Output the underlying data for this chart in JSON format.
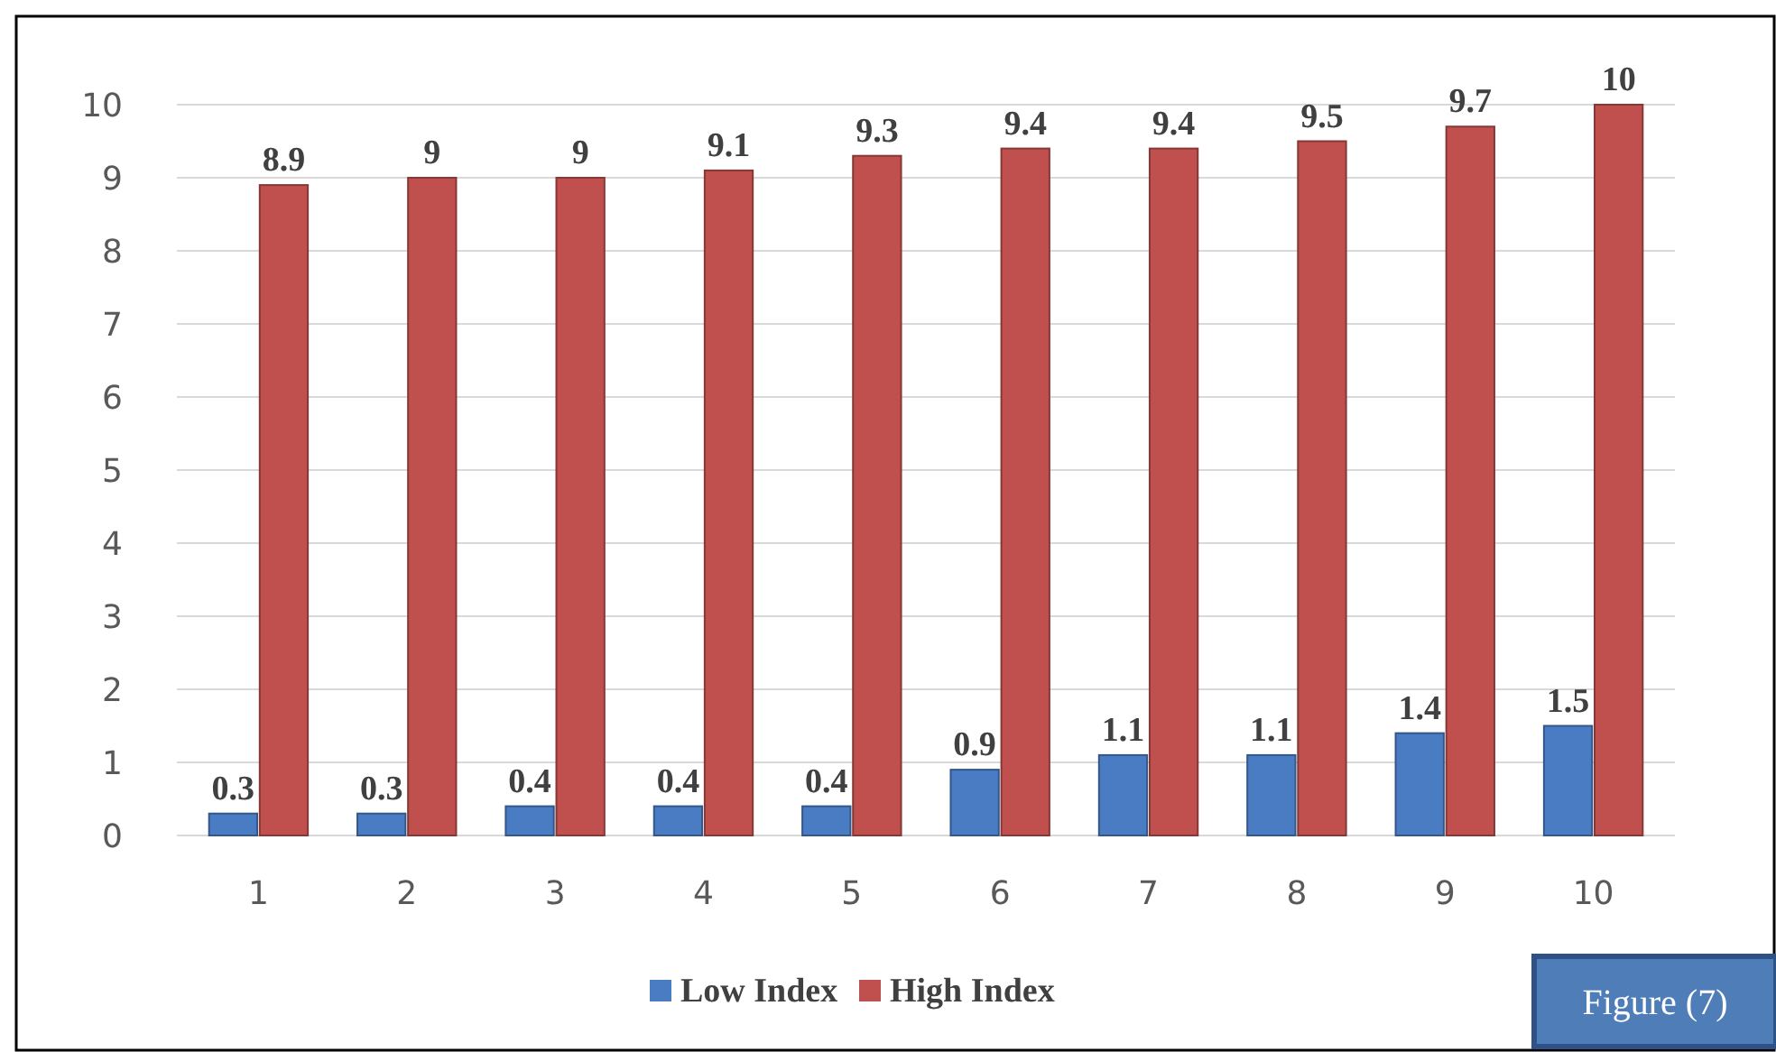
{
  "chart_data": {
    "type": "bar",
    "categories": [
      "1",
      "2",
      "3",
      "4",
      "5",
      "6",
      "7",
      "8",
      "9",
      "10"
    ],
    "series": [
      {
        "name": "Low Index",
        "color": "#4a7cc4",
        "values": [
          0.3,
          0.3,
          0.4,
          0.4,
          0.4,
          0.9,
          1.1,
          1.1,
          1.4,
          1.5
        ]
      },
      {
        "name": "High Index",
        "color": "#c0504d",
        "values": [
          8.9,
          9,
          9,
          9.1,
          9.3,
          9.4,
          9.4,
          9.5,
          9.7,
          10
        ]
      }
    ],
    "ylim": [
      0,
      10
    ],
    "yticks": [
      0,
      1,
      2,
      3,
      4,
      5,
      6,
      7,
      8,
      9,
      10
    ],
    "grid": "y",
    "legend": "bottom",
    "data_labels": true,
    "annotations": [
      "Figure (7)"
    ]
  }
}
